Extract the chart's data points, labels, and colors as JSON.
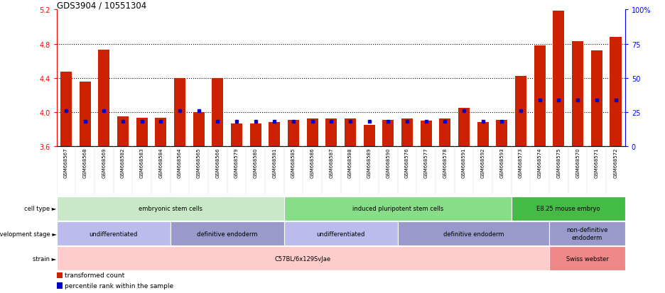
{
  "title": "GDS3904 / 10551304",
  "samples": [
    "GSM668567",
    "GSM668568",
    "GSM668569",
    "GSM668582",
    "GSM668583",
    "GSM668584",
    "GSM668564",
    "GSM668565",
    "GSM668566",
    "GSM668579",
    "GSM668580",
    "GSM668581",
    "GSM668585",
    "GSM668586",
    "GSM668587",
    "GSM668588",
    "GSM668589",
    "GSM668590",
    "GSM668576",
    "GSM668577",
    "GSM668578",
    "GSM668591",
    "GSM668592",
    "GSM668593",
    "GSM668573",
    "GSM668574",
    "GSM668575",
    "GSM668570",
    "GSM668571",
    "GSM668572"
  ],
  "bar_values": [
    4.47,
    4.36,
    4.73,
    3.95,
    3.93,
    3.93,
    4.4,
    4.0,
    4.4,
    3.87,
    3.87,
    3.88,
    3.91,
    3.92,
    3.92,
    3.92,
    3.85,
    3.91,
    3.92,
    3.9,
    3.92,
    4.05,
    3.88,
    3.91,
    4.42,
    4.78,
    5.19,
    4.83,
    4.72,
    4.88
  ],
  "percentile_values": [
    26,
    18,
    26,
    18,
    18,
    18,
    26,
    26,
    18,
    18,
    18,
    18,
    18,
    18,
    18,
    18,
    18,
    18,
    18,
    18,
    18,
    26,
    18,
    18,
    26,
    34,
    34,
    34,
    34,
    34
  ],
  "ylim_left": [
    3.6,
    5.2
  ],
  "ylim_right": [
    0,
    100
  ],
  "yticks_left": [
    3.6,
    4.0,
    4.4,
    4.8,
    5.2
  ],
  "yticks_right": [
    0,
    25,
    50,
    75,
    100
  ],
  "hlines": [
    4.0,
    4.4,
    4.8
  ],
  "bar_color": "#cc2200",
  "marker_color": "#0000cc",
  "bar_width": 0.6,
  "cell_type_groups": [
    {
      "label": "embryonic stem cells",
      "start": 0,
      "end": 11,
      "color": "#c8e8c8"
    },
    {
      "label": "induced pluripotent stem cells",
      "start": 12,
      "end": 23,
      "color": "#88dd88"
    },
    {
      "label": "E8.25 mouse embryo",
      "start": 24,
      "end": 29,
      "color": "#44bb44"
    }
  ],
  "dev_stage_groups": [
    {
      "label": "undifferentiated",
      "start": 0,
      "end": 5,
      "color": "#bbbbee"
    },
    {
      "label": "definitive endoderm",
      "start": 6,
      "end": 11,
      "color": "#9999cc"
    },
    {
      "label": "undifferentiated",
      "start": 12,
      "end": 17,
      "color": "#bbbbee"
    },
    {
      "label": "definitive endoderm",
      "start": 18,
      "end": 25,
      "color": "#9999cc"
    },
    {
      "label": "non-definitive\nendoderm",
      "start": 26,
      "end": 29,
      "color": "#9999cc"
    }
  ],
  "strain_groups": [
    {
      "label": "C57BL/6x129SvJae",
      "start": 0,
      "end": 25,
      "color": "#ffcccc"
    },
    {
      "label": "Swiss webster",
      "start": 26,
      "end": 29,
      "color": "#ee8888"
    }
  ],
  "row_labels": [
    "cell type",
    "development stage",
    "strain"
  ],
  "legend_items": [
    {
      "label": "transformed count",
      "color": "#cc2200"
    },
    {
      "label": "percentile rank within the sample",
      "color": "#0000cc"
    }
  ]
}
